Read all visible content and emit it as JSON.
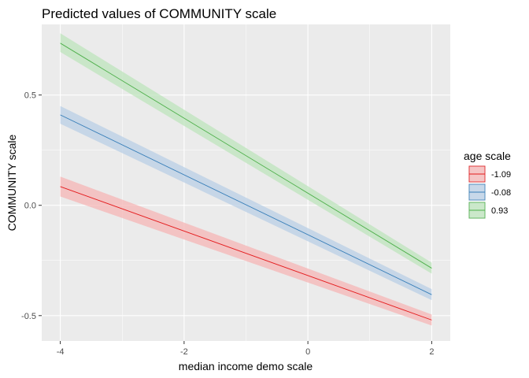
{
  "chart_data": {
    "type": "line",
    "title": "Predicted values of COMMUNITY scale",
    "xlabel": "median income demo scale",
    "ylabel": "COMMUNITY scale",
    "xlim": [
      -4.3,
      2.3
    ],
    "ylim": [
      -0.615,
      0.82
    ],
    "x_ticks": [
      -4,
      -2,
      0,
      2
    ],
    "x_tick_labels": [
      "-4",
      "-2",
      "0",
      "2"
    ],
    "y_ticks": [
      -0.5,
      0.0,
      0.5
    ],
    "y_tick_labels": [
      "-0.5",
      "0.0",
      "0.5"
    ],
    "grid": true,
    "legend_title": "age scale",
    "legend_position": "right",
    "series": [
      {
        "name": "-1.09",
        "color": "#e41a1c",
        "band_color": "#f5b5b6",
        "x": [
          -4,
          2
        ],
        "y": [
          0.085,
          -0.52
        ],
        "lower": [
          0.04,
          -0.545
        ],
        "upper": [
          0.13,
          -0.495
        ]
      },
      {
        "name": "-0.08",
        "color": "#377eb8",
        "band_color": "#b9cfe5",
        "x": [
          -4,
          2
        ],
        "y": [
          0.41,
          -0.405
        ],
        "lower": [
          0.37,
          -0.43
        ],
        "upper": [
          0.45,
          -0.38
        ]
      },
      {
        "name": "0.93",
        "color": "#4daf4a",
        "band_color": "#bde4bc",
        "x": [
          -4,
          2
        ],
        "y": [
          0.735,
          -0.285
        ],
        "lower": [
          0.695,
          -0.31
        ],
        "upper": [
          0.78,
          -0.26
        ]
      }
    ]
  }
}
